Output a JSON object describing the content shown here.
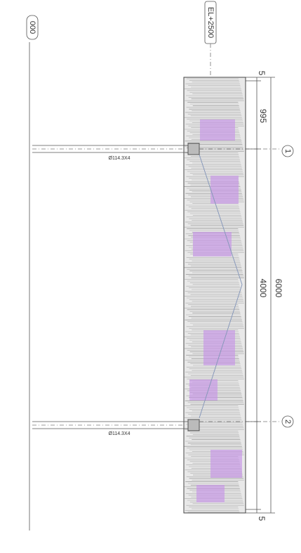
{
  "drawing": {
    "grid_a": "000",
    "elevation": "EL+2500",
    "axis_1": "1",
    "axis_2": "2",
    "dim_top": "5",
    "dim_first": "995",
    "dim_middle": "4000",
    "dim_total": "6000",
    "dim_bottom": "5",
    "post_1": "Ø114.3X4",
    "post_2": "Ø114.3X4"
  }
}
